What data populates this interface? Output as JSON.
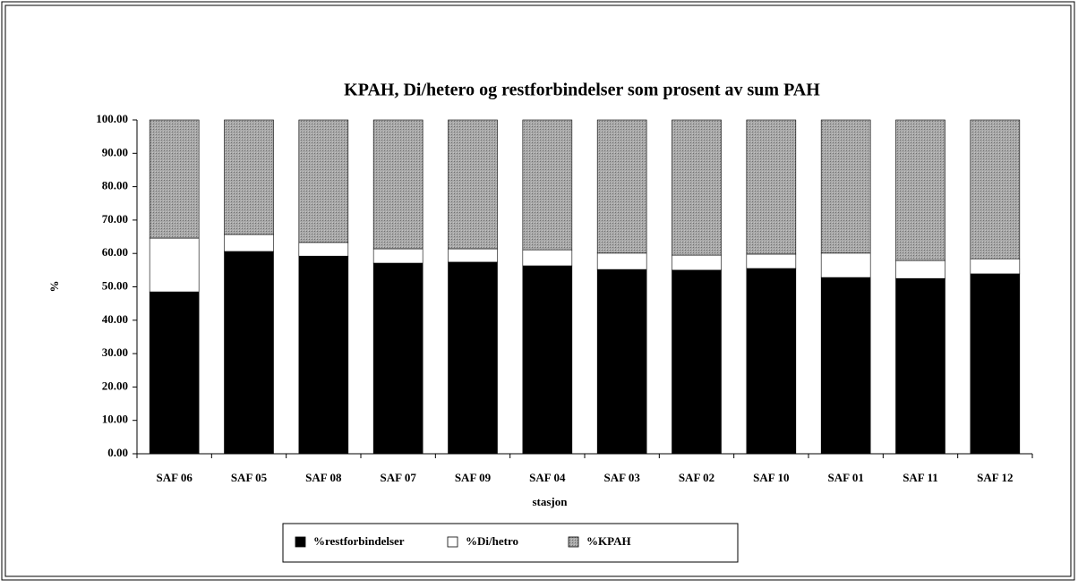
{
  "chart_data": {
    "type": "stacked-bar",
    "title": "KPAH, Di/hetero og restforbindelser som prosent av sum PAH",
    "xlabel": "stasjon",
    "ylabel": "%",
    "categories": [
      "SAF 06",
      "SAF 05",
      "SAF 08",
      "SAF 07",
      "SAF 09",
      "SAF 04",
      "SAF 03",
      "SAF 02",
      "SAF 10",
      "SAF 01",
      "SAF 11",
      "SAF 12"
    ],
    "series": [
      {
        "name": "%restforbindelser",
        "color": "#000000",
        "values": [
          48.5,
          60.6,
          59.2,
          57.1,
          57.4,
          56.3,
          55.2,
          55.0,
          55.5,
          52.8,
          52.5,
          53.9
        ]
      },
      {
        "name": "%Di/hetro",
        "color": "#ffffff",
        "values": [
          16.1,
          5.1,
          4.1,
          4.3,
          4.0,
          4.8,
          4.9,
          4.5,
          4.3,
          7.3,
          5.4,
          4.5
        ]
      },
      {
        "name": "%KPAH",
        "color": "#9a9a9a",
        "values": [
          35.4,
          34.3,
          36.7,
          38.6,
          38.6,
          38.9,
          39.9,
          40.5,
          40.2,
          39.9,
          42.1,
          41.6
        ]
      }
    ],
    "ylim": [
      0,
      100
    ],
    "yticks": [
      {
        "value": 0,
        "label": "0.00"
      },
      {
        "value": 10,
        "label": "10.00"
      },
      {
        "value": 20,
        "label": "20.00"
      },
      {
        "value": 30,
        "label": "30.00"
      },
      {
        "value": 40,
        "label": "40.00"
      },
      {
        "value": 50,
        "label": "50.00"
      },
      {
        "value": 60,
        "label": "60.00"
      },
      {
        "value": 70,
        "label": "70.00"
      },
      {
        "value": 80,
        "label": "80.00"
      },
      {
        "value": 90,
        "label": "90.00"
      },
      {
        "value": {
          "value": 100,
          "label": "100.00"
        },
        "label": "100.00"
      }
    ],
    "legend": "bottom"
  }
}
